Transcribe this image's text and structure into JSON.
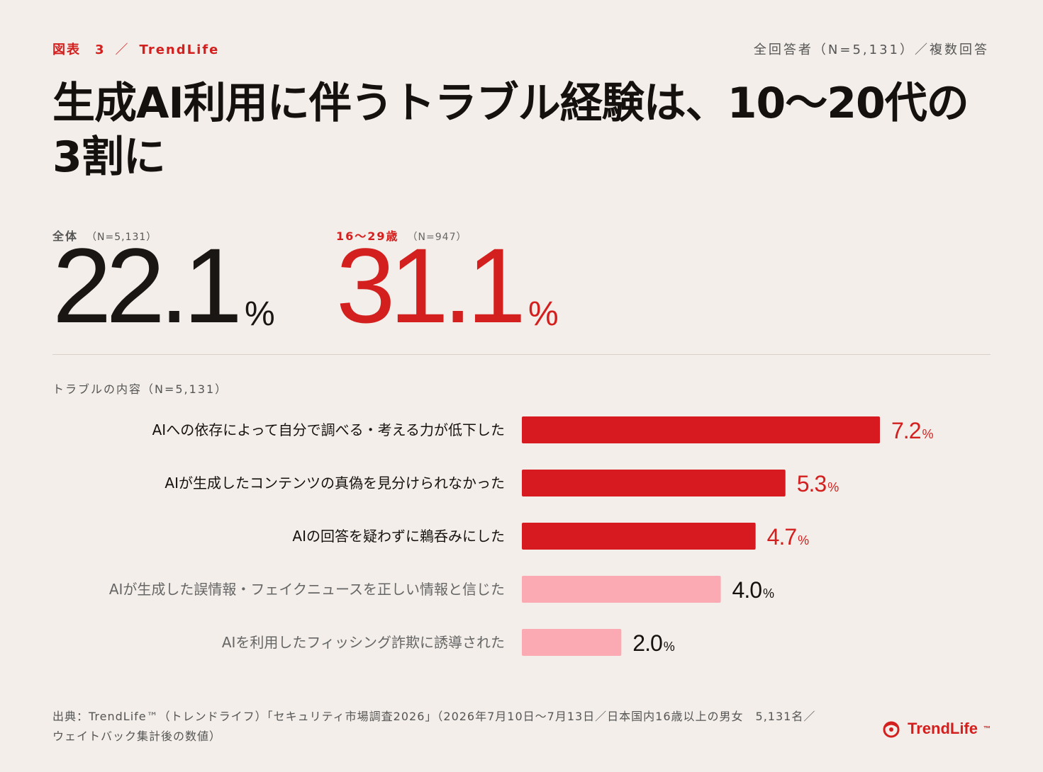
{
  "header": {
    "figure_label": "図表　3",
    "separator": "／",
    "brand_label": "TrendLife",
    "respondents": "全回答者（N=5,131）／複数回答"
  },
  "title_line1": "生成AI利用に伴うトラブル経験は、10〜20代の",
  "title_line2": "3割に",
  "stats": {
    "overall": {
      "label": "全体",
      "n": "（N=5,131）",
      "value": "22.1",
      "unit": "%"
    },
    "youth": {
      "label": "16〜29歳",
      "n": "（N=947）",
      "value": "31.1",
      "unit": "%"
    }
  },
  "chart_subtitle": "トラブルの内容（N=5,131）",
  "chart_data": {
    "type": "bar",
    "orientation": "horizontal",
    "categories": [
      "AIへの依存によって自分で調べる・考える力が低下した",
      "AIが生成したコンテンツの真偽を見分けられなかった",
      "AIの回答を疑わずに鵜呑みにした",
      "AIが生成した誤情報・フェイクニュースを正しい情報と信じた",
      "AIを利用したフィッシング詐欺に誘導された"
    ],
    "values": [
      7.2,
      5.3,
      4.7,
      4.0,
      2.0
    ],
    "value_labels": [
      "7.2",
      "5.3",
      "4.7",
      "4.0",
      "2.0"
    ],
    "unit": "%",
    "highlighted": [
      true,
      true,
      true,
      false,
      false
    ],
    "colors": {
      "highlight": "#d61a1f",
      "muted": "#fba9b2",
      "highlight_text": "#d3201f",
      "muted_text": "#15110f"
    }
  },
  "source_line1": "出典：TrendLife™（トレンドライフ）「セキュリティ市場調査2026」（2026年7月10日〜7月13日／日本国内16歳以上の男女　5,131名／",
  "source_line2": "ウェイトバック集計後の数値）",
  "brand_footer": {
    "name": "TrendLife",
    "tm": "™",
    "icon": "trendlife-logo-icon"
  }
}
